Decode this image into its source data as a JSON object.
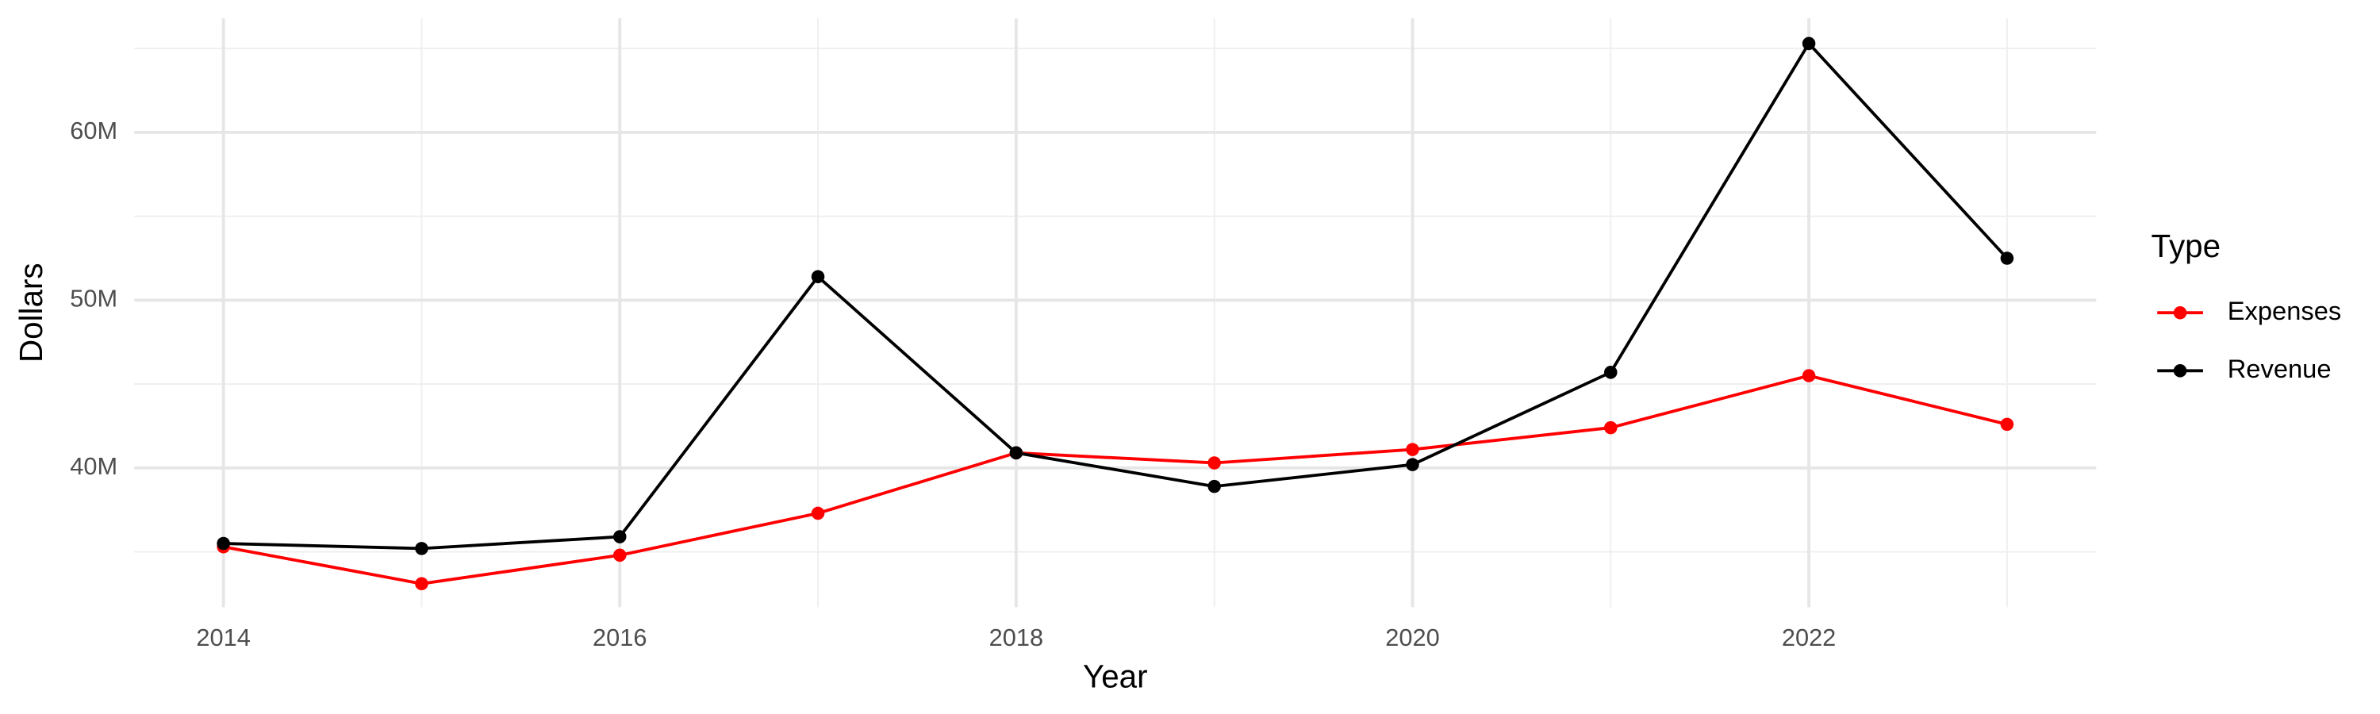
{
  "chart_data": {
    "type": "line",
    "x_label": "Year",
    "y_label": "Dollars",
    "legend_title": "Type",
    "x": [
      2014,
      2015,
      2016,
      2017,
      2018,
      2019,
      2020,
      2021,
      2022,
      2023
    ],
    "series": [
      {
        "name": "Expenses",
        "color": "#ff0000",
        "values": [
          35300000,
          33100000,
          34800000,
          37300000,
          40900000,
          40300000,
          41100000,
          42400000,
          45500000,
          42600000
        ]
      },
      {
        "name": "Revenue",
        "color": "#000000",
        "values": [
          35500000,
          35200000,
          35900000,
          51400000,
          40900000,
          38900000,
          40200000,
          45700000,
          65300000,
          52500000
        ]
      }
    ],
    "xlim": [
      2013.55,
      2023.45
    ],
    "ylim": [
      31700000,
      66800000
    ],
    "xticks": [
      2014,
      2016,
      2018,
      2020,
      2022
    ],
    "yticks": [
      {
        "value": 40000000,
        "label": "40M"
      },
      {
        "value": 50000000,
        "label": "50M"
      },
      {
        "value": 60000000,
        "label": "60M"
      }
    ],
    "xminorticks": [
      2015,
      2017,
      2019,
      2021,
      2023
    ],
    "yminorticks": [
      35000000,
      45000000,
      55000000,
      65000000
    ],
    "grid": true,
    "legend": "right"
  }
}
